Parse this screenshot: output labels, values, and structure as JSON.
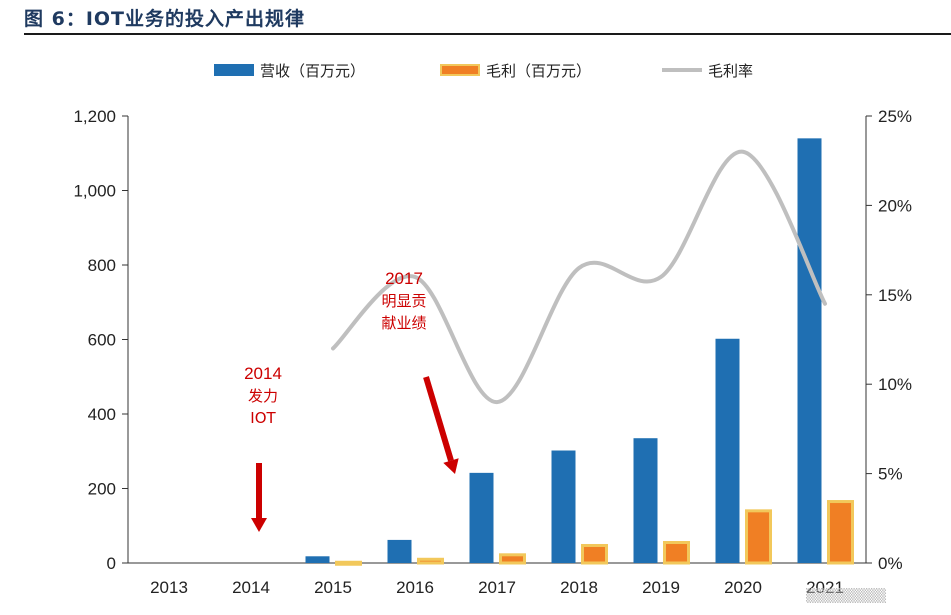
{
  "title": "图 6：IOT业务的投入产出规律",
  "colors": {
    "revenue": "#1f6fb2",
    "gross_profit_fill": "#f07f24",
    "gross_profit_border": "#f2c85b",
    "margin_line": "#bfbfbf",
    "annotation": "#cc0000"
  },
  "chart_data": {
    "type": "bar",
    "categories": [
      "2013",
      "2014",
      "2015",
      "2016",
      "2017",
      "2018",
      "2019",
      "2020",
      "2021"
    ],
    "series": [
      {
        "name": "营收（百万元）",
        "type": "bar",
        "axis": "left",
        "values": [
          0,
          0,
          18,
          62,
          242,
          302,
          335,
          602,
          1140
        ]
      },
      {
        "name": "毛利（百万元）",
        "type": "bar",
        "axis": "left",
        "values": [
          0,
          0,
          2,
          10,
          22,
          47,
          55,
          140,
          165
        ]
      },
      {
        "name": "毛利率",
        "type": "line",
        "axis": "right",
        "unit": "%",
        "values": [
          null,
          null,
          12,
          16,
          9,
          16.5,
          16,
          23,
          14.5
        ]
      }
    ],
    "ylim_left": [
      0,
      1200
    ],
    "yticks_left": [
      "0",
      "200",
      "400",
      "600",
      "800",
      "1,000",
      "1,200"
    ],
    "ylim_right": [
      0,
      25
    ],
    "yticks_right": [
      "0%",
      "5%",
      "10%",
      "15%",
      "20%",
      "25%"
    ],
    "legend_position": "top",
    "grid": false,
    "annotations": [
      {
        "year_text": "2014",
        "lines": [
          "发力",
          "IOT"
        ],
        "target": "2014"
      },
      {
        "year_text": "2017",
        "lines": [
          "明显贡",
          "献业绩"
        ],
        "target": "2017"
      }
    ]
  },
  "watermark": "▒▒▒▒▒▒▒▒"
}
